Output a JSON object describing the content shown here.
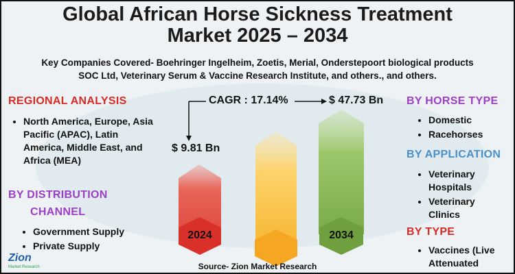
{
  "header": {
    "title_lines": [
      "Global African Horse Sickness Treatment",
      "Market 2025 – 2034"
    ],
    "subtitle_lines": [
      "Key Companies Covered- Boehringer Ingelheim, Zoetis, Merial, Onderstepoort biological products",
      "SOC Ltd, Veterinary Serum & Vaccine Research Institute, and others., and others."
    ]
  },
  "regional": {
    "heading": "REGIONAL ANALYSIS",
    "items": [
      "North America, Europe, Asia Pacific (APAC), Latin America, Middle East, and Africa (MEA)"
    ]
  },
  "distribution": {
    "heading_lines": [
      "BY DISTRIBUTION",
      "CHANNEL"
    ],
    "items": [
      "Government Supply",
      "Private Supply"
    ]
  },
  "horse_type": {
    "heading": "BY HORSE TYPE",
    "items": [
      "Domestic",
      "Racehorses"
    ]
  },
  "application": {
    "heading": "BY APPLICATION",
    "items": [
      "Veterinary Hospitals",
      "Veterinary Clinics"
    ]
  },
  "by_type": {
    "heading": "BY TYPE",
    "items": [
      "Vaccines (Live Attenuated"
    ]
  },
  "center": {
    "cagr": "CAGR : 17.14%",
    "value_start": "$ 9.81 Bn",
    "value_end": "$ 47.73 Bn",
    "year_start": "2024",
    "year_end": "2034"
  },
  "footer": {
    "source": "Source- Zion Market Research",
    "logo": "Zion",
    "logo_sub": "Market Research"
  }
}
